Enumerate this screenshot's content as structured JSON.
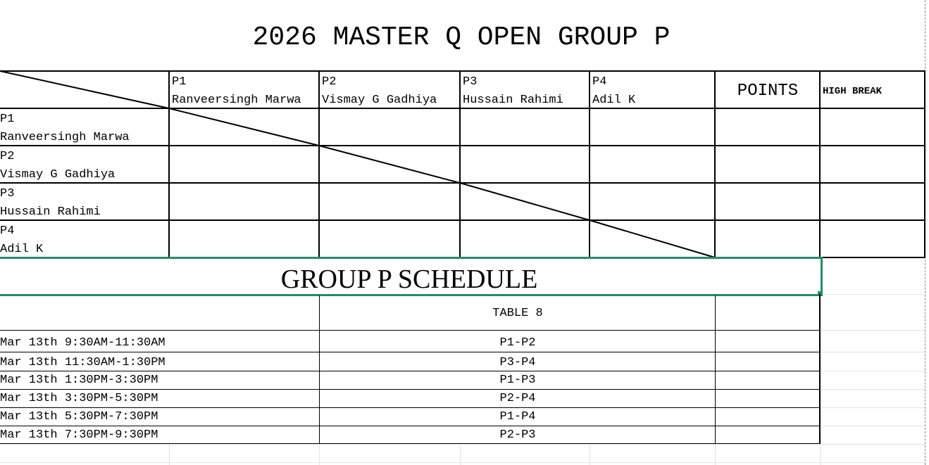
{
  "title": "2026 MASTER Q OPEN GROUP P",
  "standings": {
    "columns": [
      {
        "code": "P1",
        "name": "Ranveersingh Marwa"
      },
      {
        "code": "P2",
        "name": "Vismay G Gadhiya"
      },
      {
        "code": "P3",
        "name": "Hussain Rahimi"
      },
      {
        "code": "P4",
        "name": "Adil K"
      }
    ],
    "points_label": "POINTS",
    "high_break_label": "HIGH BREAK",
    "rows": [
      {
        "code": "P1",
        "name": "Ranveersingh Marwa"
      },
      {
        "code": "P2",
        "name": "Vismay G Gadhiya"
      },
      {
        "code": "P3",
        "name": "Hussain Rahimi"
      },
      {
        "code": "P4",
        "name": "Adil K"
      }
    ]
  },
  "schedule": {
    "title": "GROUP P SCHEDULE",
    "table_label": "TABLE 8",
    "matches": [
      {
        "time": "Mar 13th 9:30AM-11:30AM",
        "match": "P1-P2"
      },
      {
        "time": "Mar 13th 11:30AM-1:30PM",
        "match": "P3-P4"
      },
      {
        "time": "Mar 13th 1:30PM-3:30PM",
        "match": "P1-P3"
      },
      {
        "time": "Mar 13th 3:30PM-5:30PM",
        "match": "P2-P4"
      },
      {
        "time": "Mar 13th 5:30PM-7:30PM",
        "match": "P1-P4"
      },
      {
        "time": "Mar 13th 7:30PM-9:30PM",
        "match": "P2-P3"
      }
    ]
  },
  "colors": {
    "selection": "#1f8f66",
    "gridline": "#e3e3e3"
  }
}
